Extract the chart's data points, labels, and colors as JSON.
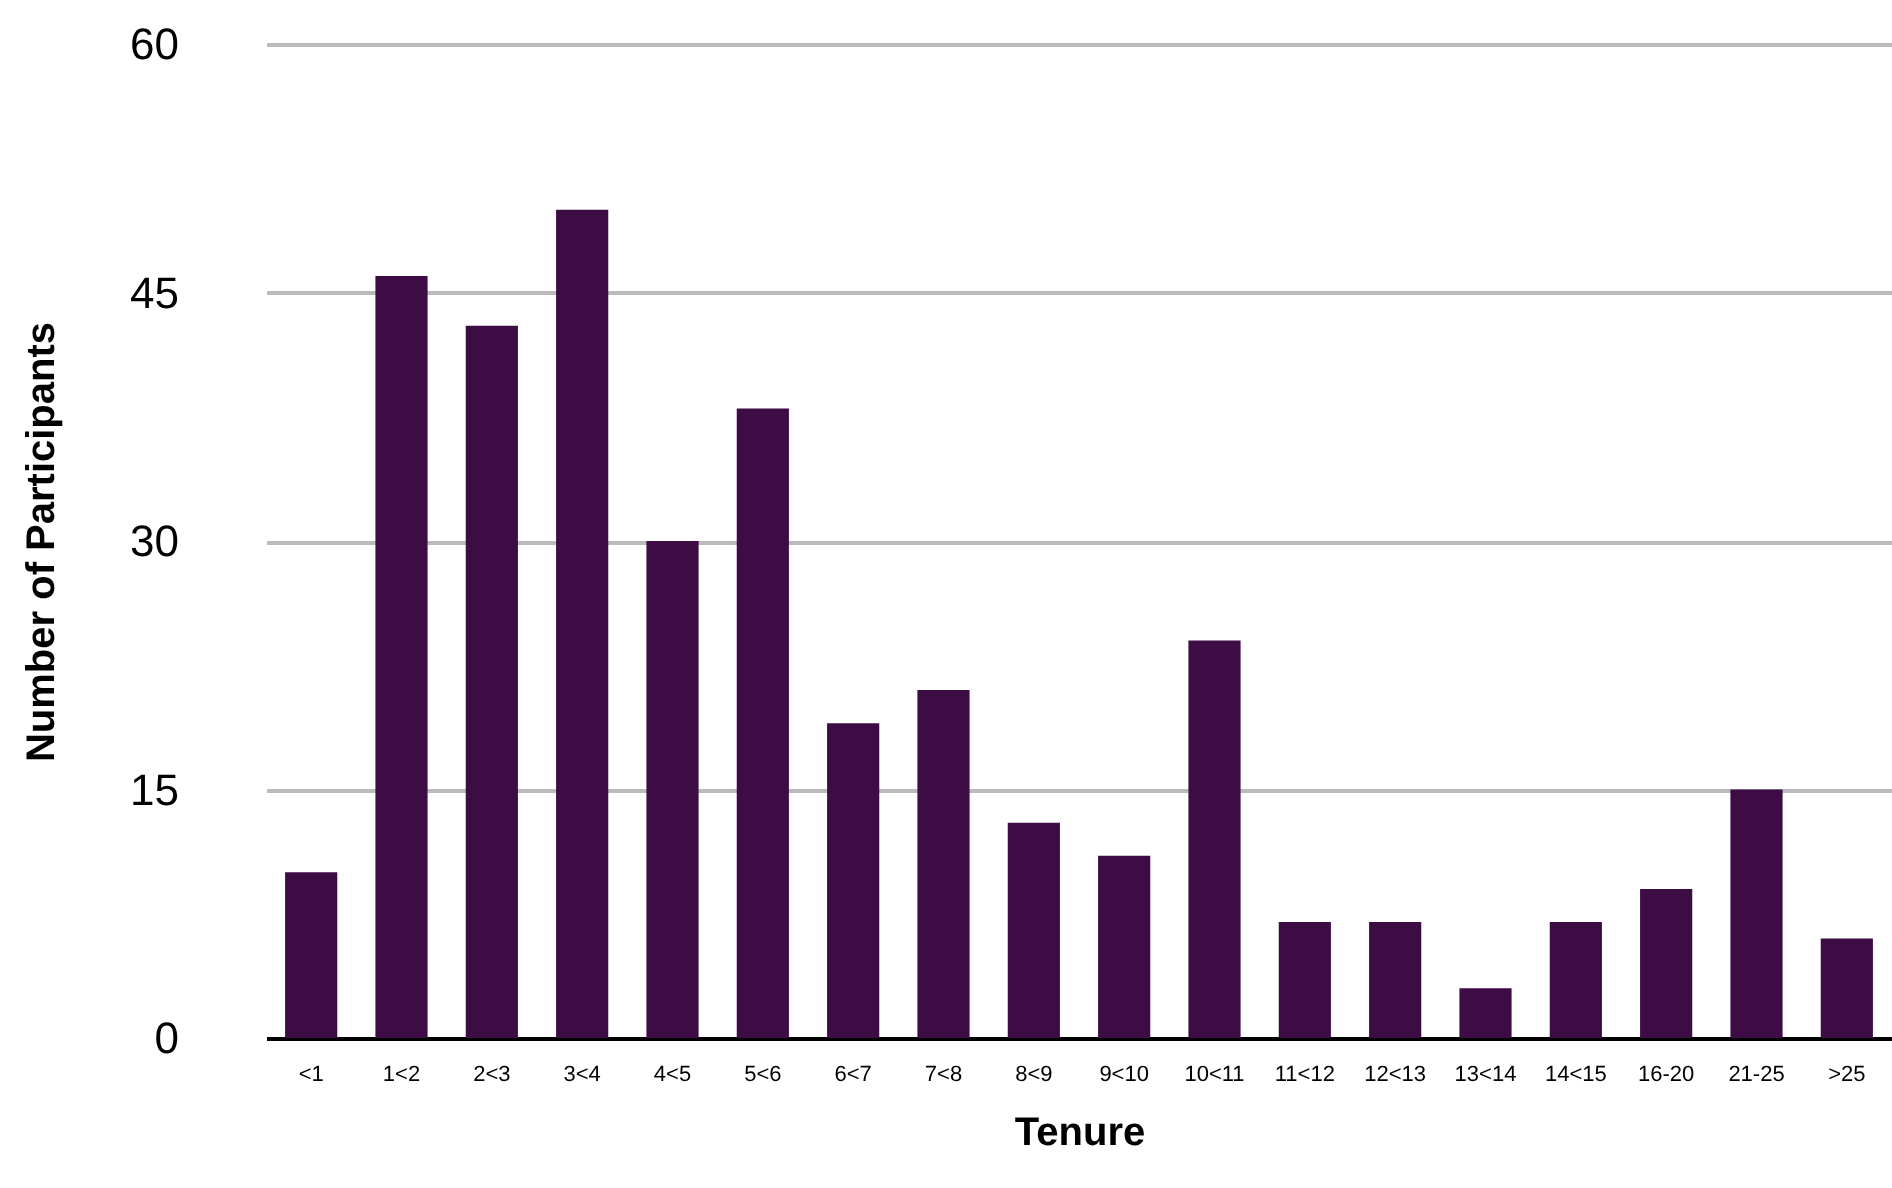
{
  "chart_data": {
    "type": "bar",
    "xlabel": "Tenure",
    "ylabel": "Number of Participants",
    "categories": [
      "<1",
      "1<2",
      "2<3",
      "3<4",
      "4<5",
      "5<6",
      "6<7",
      "7<8",
      "8<9",
      "9<10",
      "10<11",
      "11<12",
      "12<13",
      "13<14",
      "14<15",
      "16-20",
      "21-25",
      ">25"
    ],
    "values": [
      10,
      46,
      43,
      50,
      30,
      38,
      19,
      21,
      13,
      11,
      24,
      7,
      7,
      3,
      7,
      9,
      15,
      6
    ],
    "color": "#3d0c45",
    "ylim": [
      0,
      60
    ],
    "yticks": [
      0,
      15,
      30,
      45,
      60
    ],
    "grid": "y"
  }
}
